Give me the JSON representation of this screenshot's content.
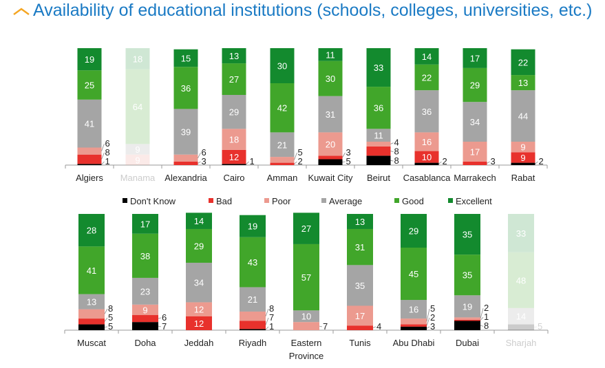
{
  "title": "Availability of educational institutions (schools, colleges, universities, etc.)",
  "icon": "chevron-up-icon",
  "colors": {
    "Don't Know": "#000000",
    "Bad": "#e8312c",
    "Poor": "#ec9a8f",
    "Average": "#a5a5a5",
    "Good": "#41a62a",
    "Excellent": "#138a2e",
    "accent": "#f5a623",
    "title": "#1a7ac4"
  },
  "chart_data": [
    {
      "type": "bar",
      "stacked": true,
      "legend": "below",
      "ylim": [
        0,
        100
      ],
      "categories": [
        "Algiers",
        "Manama",
        "Alexandria",
        "Cairo",
        "Amman",
        "Kuwait City",
        "Beirut",
        "Casablanca",
        "Marrakech",
        "Rabat"
      ],
      "faded": [
        "Manama"
      ],
      "series": [
        {
          "name": "Don't Know",
          "values": [
            1,
            0,
            0,
            1,
            0,
            5,
            8,
            2,
            0,
            2
          ]
        },
        {
          "name": "Bad",
          "values": [
            8,
            0,
            3,
            12,
            2,
            3,
            8,
            10,
            3,
            9
          ]
        },
        {
          "name": "Poor",
          "values": [
            6,
            9,
            6,
            18,
            5,
            20,
            4,
            16,
            17,
            9
          ]
        },
        {
          "name": "Average",
          "values": [
            41,
            9,
            39,
            29,
            21,
            31,
            11,
            36,
            34,
            44
          ]
        },
        {
          "name": "Good",
          "values": [
            25,
            64,
            36,
            27,
            42,
            30,
            36,
            22,
            29,
            13
          ]
        },
        {
          "name": "Excellent",
          "values": [
            19,
            18,
            15,
            13,
            30,
            11,
            33,
            14,
            17,
            22
          ]
        }
      ]
    },
    {
      "type": "bar",
      "stacked": true,
      "ylim": [
        0,
        100
      ],
      "categories": [
        "Muscat",
        "Doha",
        "Jeddah",
        "Riyadh",
        "Eastern Province",
        "Tunis",
        "Abu Dhabi",
        "Dubai",
        "Sharjah"
      ],
      "faded": [
        "Sharjah"
      ],
      "series": [
        {
          "name": "Don't Know",
          "values": [
            5,
            7,
            0,
            1,
            0,
            0,
            3,
            8,
            5
          ]
        },
        {
          "name": "Bad",
          "values": [
            5,
            6,
            12,
            7,
            0,
            4,
            2,
            1,
            0
          ]
        },
        {
          "name": "Poor",
          "values": [
            8,
            9,
            12,
            8,
            7,
            17,
            5,
            2,
            0
          ]
        },
        {
          "name": "Average",
          "values": [
            13,
            23,
            34,
            21,
            10,
            35,
            16,
            19,
            14
          ]
        },
        {
          "name": "Good",
          "values": [
            41,
            38,
            29,
            43,
            57,
            31,
            45,
            35,
            48
          ]
        },
        {
          "name": "Excellent",
          "values": [
            28,
            17,
            14,
            19,
            27,
            13,
            29,
            35,
            33
          ]
        }
      ]
    }
  ]
}
